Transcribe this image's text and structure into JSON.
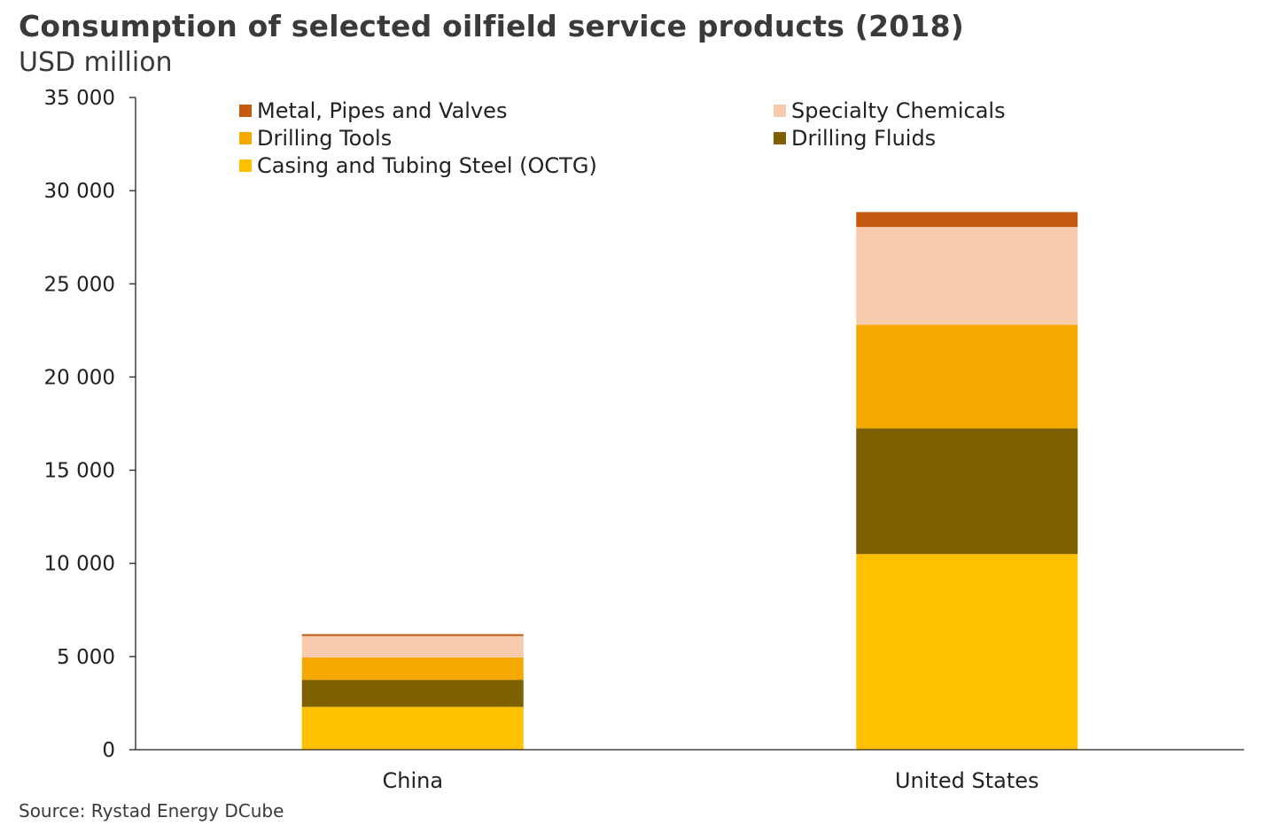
{
  "header": {
    "title": "Consumption of selected oilfield service products (2018)",
    "subtitle": "USD million"
  },
  "footer": {
    "source": "Source: Rystad Energy DCube"
  },
  "chart_data": {
    "type": "bar",
    "stacked": true,
    "title": "Consumption of selected oilfield service products (2018)",
    "ylabel": "USD million",
    "xlabel": "",
    "ylim": [
      0,
      35000
    ],
    "yticks": [
      0,
      5000,
      10000,
      15000,
      20000,
      25000,
      30000,
      35000
    ],
    "ytick_labels": [
      "0",
      "5 000",
      "10 000",
      "15 000",
      "20 000",
      "25 000",
      "30 000",
      "35 000"
    ],
    "categories": [
      "China",
      "United States"
    ],
    "legend": {
      "placement": "top",
      "order": [
        "Metal, Pipes and Valves",
        "Specialty Chemicals",
        "Drilling Tools",
        "Drilling Fluids",
        "Casing and Tubing Steel (OCTG)"
      ]
    },
    "series": [
      {
        "name": "Casing and Tubing Steel (OCTG)",
        "color": "#FFC000",
        "values": [
          2300,
          10500
        ]
      },
      {
        "name": "Drilling Fluids",
        "color": "#7F6000",
        "values": [
          1450,
          6750
        ]
      },
      {
        "name": "Drilling Tools",
        "color": "#F5A800",
        "values": [
          1200,
          5550
        ]
      },
      {
        "name": "Specialty Chemicals",
        "color": "#F8CBAD",
        "values": [
          1150,
          5250
        ]
      },
      {
        "name": "Metal, Pipes and Valves",
        "color": "#C55A11",
        "values": [
          100,
          800
        ]
      }
    ],
    "grid": false
  }
}
